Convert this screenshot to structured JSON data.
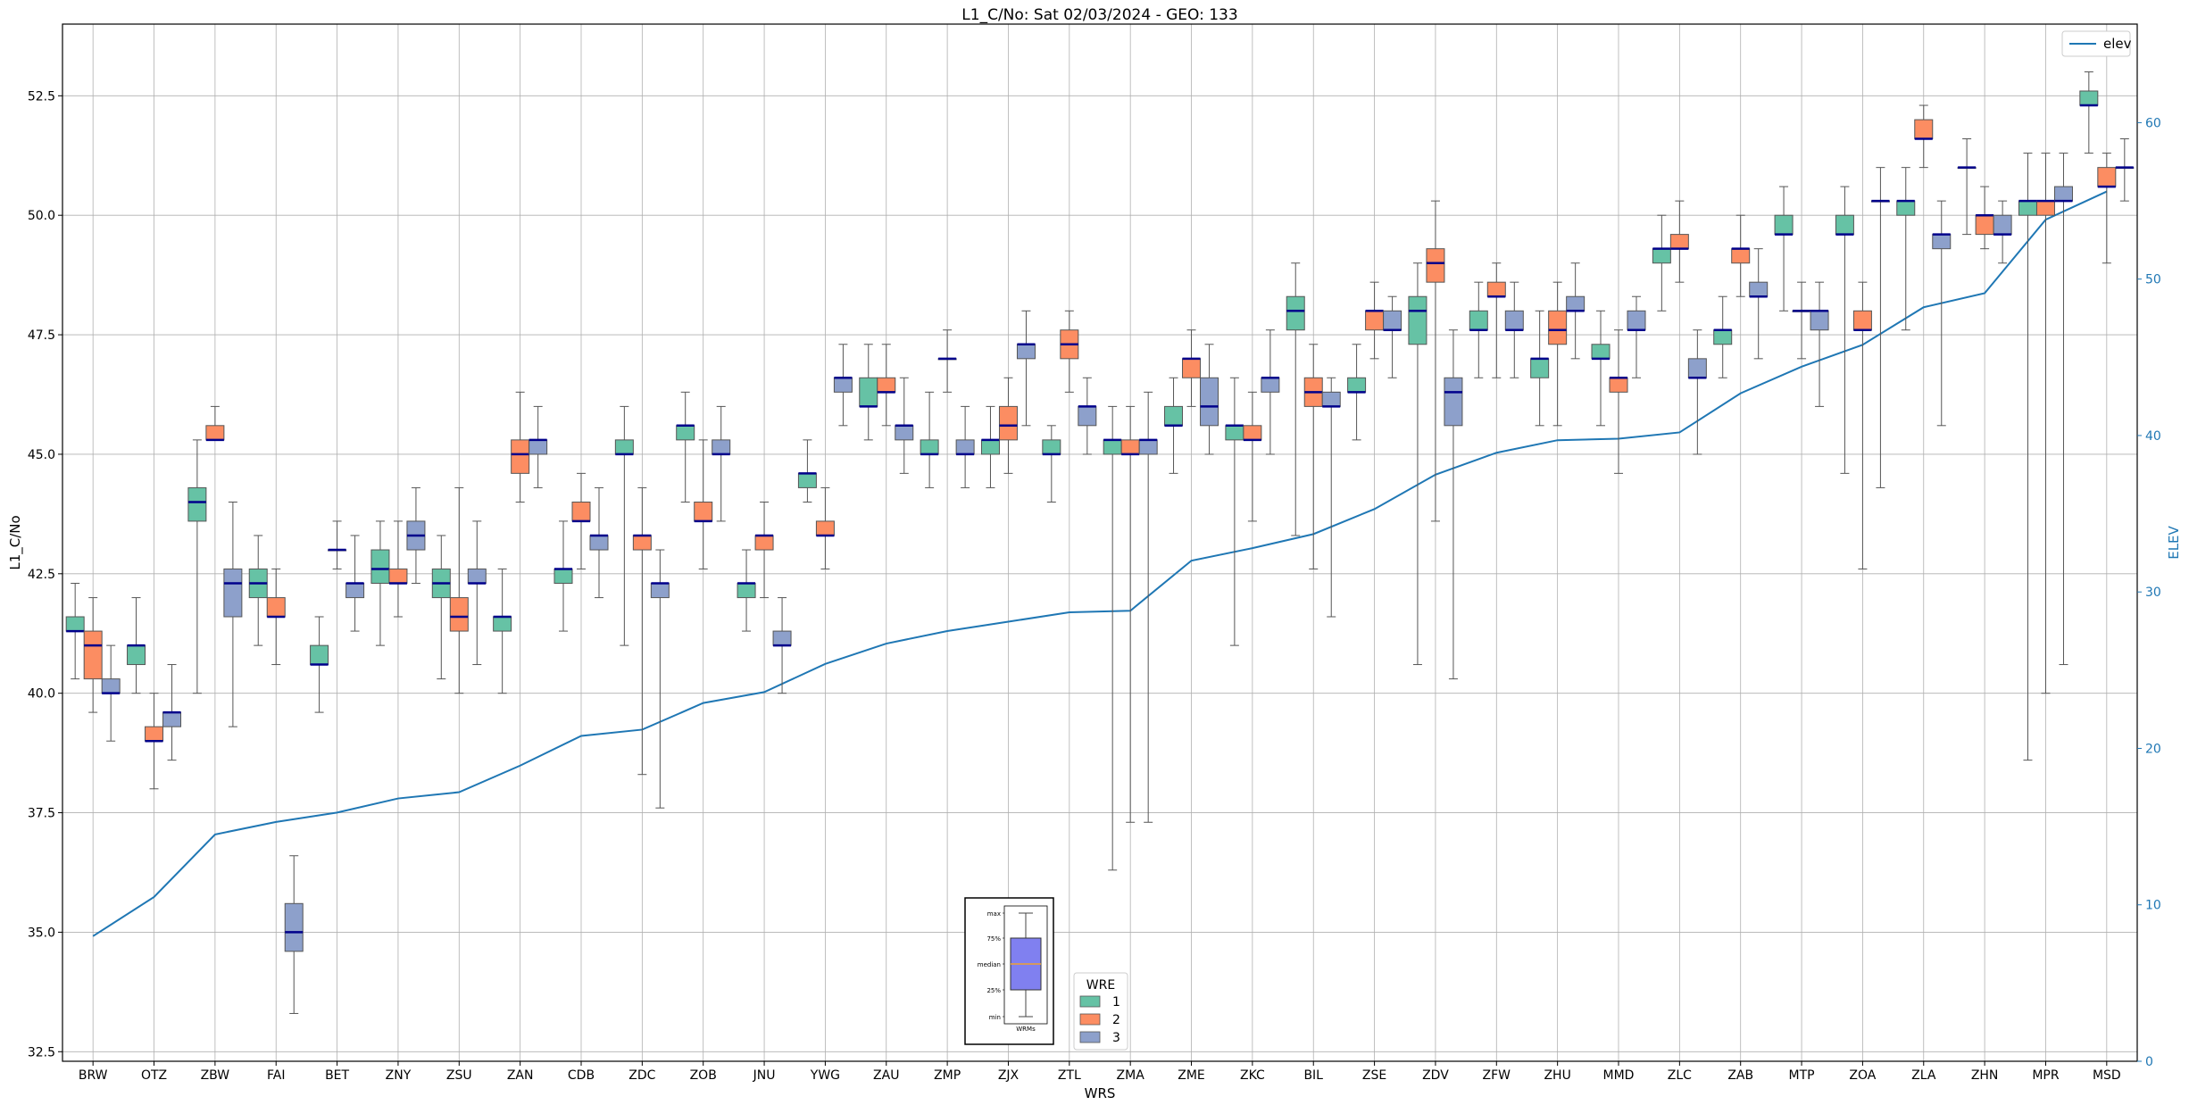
{
  "chart_data": {
    "type": "box",
    "title": "L1_C/No: Sat 02/03/2024 - GEO: 133",
    "xlabel": "WRS",
    "ylabel": "L1_C/No",
    "y2label": "ELEV",
    "ylim": [
      32.3,
      54.0
    ],
    "y2lim": [
      0,
      66.3
    ],
    "yticks": [
      "32.5",
      "35.0",
      "37.5",
      "40.0",
      "42.5",
      "45.0",
      "47.5",
      "50.0",
      "52.5"
    ],
    "y2ticks": [
      "0",
      "10",
      "20",
      "30",
      "40",
      "50",
      "60"
    ],
    "categories": [
      "BRW",
      "OTZ",
      "ZBW",
      "FAI",
      "BET",
      "ZNY",
      "ZSU",
      "ZAN",
      "CDB",
      "ZDC",
      "ZOB",
      "JNU",
      "YWG",
      "ZAU",
      "ZMP",
      "ZJX",
      "ZTL",
      "ZMA",
      "ZME",
      "ZKC",
      "BIL",
      "ZSE",
      "ZDV",
      "ZFW",
      "ZHU",
      "MMD",
      "ZLC",
      "ZAB",
      "MTP",
      "ZOA",
      "ZLA",
      "ZHN",
      "MPR",
      "MSD"
    ],
    "legend": {
      "title": "WRE",
      "position": "lower-center",
      "entries": [
        {
          "label": "1",
          "color": "#66c2a5"
        },
        {
          "label": "2",
          "color": "#fc8d62"
        },
        {
          "label": "3",
          "color": "#8da0cb"
        }
      ]
    },
    "elev_legend": {
      "label": "elev",
      "color": "#1f77b4",
      "position": "upper-right"
    },
    "inset": {
      "labels": [
        "max",
        "75%",
        "median",
        "25%",
        "min"
      ],
      "xlabel": "WRMs"
    },
    "elev": [
      8,
      10.5,
      14.5,
      15.3,
      15.9,
      16.8,
      17.2,
      18.9,
      20.8,
      21.2,
      22.9,
      23.6,
      25.4,
      26.7,
      27.5,
      28.1,
      28.7,
      28.8,
      32.0,
      32.8,
      33.7,
      35.3,
      37.5,
      38.9,
      39.7,
      39.8,
      40.2,
      42.7,
      44.4,
      45.8,
      48.2,
      49.1,
      53.8,
      55.6
    ],
    "series": [
      {
        "name": "1",
        "boxes": [
          {
            "cat": "BRW",
            "min": 40.3,
            "q1": 41.3,
            "med": 41.3,
            "q3": 41.6,
            "max": 42.3
          },
          {
            "cat": "OTZ",
            "min": 40.0,
            "q1": 40.6,
            "med": 41.0,
            "q3": 41.0,
            "max": 42.0
          },
          {
            "cat": "ZBW",
            "min": 40.0,
            "q1": 43.6,
            "med": 44.0,
            "q3": 44.3,
            "max": 45.3
          },
          {
            "cat": "FAI",
            "min": 41.0,
            "q1": 42.0,
            "med": 42.3,
            "q3": 42.6,
            "max": 43.3
          },
          {
            "cat": "BET",
            "min": 39.6,
            "q1": 40.6,
            "med": 40.6,
            "q3": 41.0,
            "max": 41.6
          },
          {
            "cat": "ZNY",
            "min": 41.0,
            "q1": 42.3,
            "med": 42.6,
            "q3": 43.0,
            "max": 43.6
          },
          {
            "cat": "ZSU",
            "min": 40.3,
            "q1": 42.0,
            "med": 42.3,
            "q3": 42.6,
            "max": 43.3
          },
          {
            "cat": "ZAN",
            "min": 40.0,
            "q1": 41.3,
            "med": 41.6,
            "q3": 41.6,
            "max": 42.6
          },
          {
            "cat": "CDB",
            "min": 41.3,
            "q1": 42.3,
            "med": 42.6,
            "q3": 42.6,
            "max": 43.6
          },
          {
            "cat": "ZDC",
            "min": 41.0,
            "q1": 45.0,
            "med": 45.0,
            "q3": 45.3,
            "max": 46.0
          },
          {
            "cat": "ZOB",
            "min": 44.0,
            "q1": 45.3,
            "med": 45.6,
            "q3": 45.6,
            "max": 46.3
          },
          {
            "cat": "JNU",
            "min": 41.3,
            "q1": 42.0,
            "med": 42.3,
            "q3": 42.3,
            "max": 43.0
          },
          {
            "cat": "YWG",
            "min": 44.0,
            "q1": 44.3,
            "med": 44.6,
            "q3": 44.6,
            "max": 45.3
          },
          {
            "cat": "ZAU",
            "min": 45.3,
            "q1": 46.0,
            "med": 46.0,
            "q3": 46.6,
            "max": 47.3
          },
          {
            "cat": "ZMP",
            "min": 44.3,
            "q1": 45.0,
            "med": 45.0,
            "q3": 45.3,
            "max": 46.3
          },
          {
            "cat": "ZJX",
            "min": 44.3,
            "q1": 45.0,
            "med": 45.3,
            "q3": 45.3,
            "max": 46.0
          },
          {
            "cat": "ZTL",
            "min": 44.0,
            "q1": 45.0,
            "med": 45.0,
            "q3": 45.3,
            "max": 45.6
          },
          {
            "cat": "ZMA",
            "min": 36.3,
            "q1": 45.0,
            "med": 45.3,
            "q3": 45.3,
            "max": 46.0
          },
          {
            "cat": "ZME",
            "min": 44.6,
            "q1": 45.6,
            "med": 45.6,
            "q3": 46.0,
            "max": 46.6
          },
          {
            "cat": "ZKC",
            "min": 41.0,
            "q1": 45.3,
            "med": 45.6,
            "q3": 45.6,
            "max": 46.6
          },
          {
            "cat": "BIL",
            "min": 43.3,
            "q1": 47.6,
            "med": 48.0,
            "q3": 48.3,
            "max": 49.0
          },
          {
            "cat": "ZSE",
            "min": 45.3,
            "q1": 46.3,
            "med": 46.3,
            "q3": 46.6,
            "max": 47.3
          },
          {
            "cat": "ZDV",
            "min": 40.6,
            "q1": 47.3,
            "med": 48.0,
            "q3": 48.3,
            "max": 49.0
          },
          {
            "cat": "ZFW",
            "min": 46.6,
            "q1": 47.6,
            "med": 47.6,
            "q3": 48.0,
            "max": 48.6
          },
          {
            "cat": "ZHU",
            "min": 45.6,
            "q1": 46.6,
            "med": 47.0,
            "q3": 47.0,
            "max": 48.0
          },
          {
            "cat": "MMD",
            "min": 45.6,
            "q1": 47.0,
            "med": 47.0,
            "q3": 47.3,
            "max": 48.0
          },
          {
            "cat": "ZLC",
            "min": 48.0,
            "q1": 49.0,
            "med": 49.3,
            "q3": 49.3,
            "max": 50.0
          },
          {
            "cat": "ZAB",
            "min": 46.6,
            "q1": 47.3,
            "med": 47.6,
            "q3": 47.6,
            "max": 48.3
          },
          {
            "cat": "MTP",
            "min": 48.0,
            "q1": 49.6,
            "med": 49.6,
            "q3": 50.0,
            "max": 50.6
          },
          {
            "cat": "ZOA",
            "min": 44.6,
            "q1": 49.6,
            "med": 49.6,
            "q3": 50.0,
            "max": 50.6
          },
          {
            "cat": "ZLA",
            "min": 47.6,
            "q1": 50.0,
            "med": 50.3,
            "q3": 50.3,
            "max": 51.0
          },
          {
            "cat": "ZHN",
            "min": 49.6,
            "q1": 51.0,
            "med": 51.0,
            "q3": 51.0,
            "max": 51.6
          },
          {
            "cat": "MPR",
            "min": 38.6,
            "q1": 50.0,
            "med": 50.3,
            "q3": 50.3,
            "max": 51.3
          },
          {
            "cat": "MSD",
            "min": 51.3,
            "q1": 52.3,
            "med": 52.3,
            "q3": 52.6,
            "max": 53.0
          }
        ]
      },
      {
        "name": "2",
        "boxes": [
          {
            "cat": "BRW",
            "min": 39.6,
            "q1": 40.3,
            "med": 41.0,
            "q3": 41.3,
            "max": 42.0
          },
          {
            "cat": "OTZ",
            "min": 38.0,
            "q1": 39.0,
            "med": 39.0,
            "q3": 39.3,
            "max": 40.0
          },
          {
            "cat": "ZBW",
            "min": 45.3,
            "q1": 45.3,
            "med": 45.3,
            "q3": 45.6,
            "max": 46.0
          },
          {
            "cat": "FAI",
            "min": 40.6,
            "q1": 41.6,
            "med": 41.6,
            "q3": 42.0,
            "max": 42.6
          },
          {
            "cat": "BET",
            "min": 42.6,
            "q1": 43.0,
            "med": 43.0,
            "q3": 43.0,
            "max": 43.6
          },
          {
            "cat": "ZNY",
            "min": 41.6,
            "q1": 42.3,
            "med": 42.3,
            "q3": 42.6,
            "max": 43.6
          },
          {
            "cat": "ZSU",
            "min": 40.0,
            "q1": 41.3,
            "med": 41.6,
            "q3": 42.0,
            "max": 44.3
          },
          {
            "cat": "ZAN",
            "min": 44.0,
            "q1": 44.6,
            "med": 45.0,
            "q3": 45.3,
            "max": 46.3
          },
          {
            "cat": "CDB",
            "min": 42.6,
            "q1": 43.6,
            "med": 43.6,
            "q3": 44.0,
            "max": 44.6
          },
          {
            "cat": "ZDC",
            "min": 38.3,
            "q1": 43.0,
            "med": 43.3,
            "q3": 43.3,
            "max": 44.3
          },
          {
            "cat": "ZOB",
            "min": 42.6,
            "q1": 43.6,
            "med": 43.6,
            "q3": 44.0,
            "max": 45.3
          },
          {
            "cat": "JNU",
            "min": 42.0,
            "q1": 43.0,
            "med": 43.3,
            "q3": 43.3,
            "max": 44.0
          },
          {
            "cat": "YWG",
            "min": 42.6,
            "q1": 43.3,
            "med": 43.3,
            "q3": 43.6,
            "max": 44.3
          },
          {
            "cat": "ZAU",
            "min": 45.6,
            "q1": 46.3,
            "med": 46.3,
            "q3": 46.6,
            "max": 47.3
          },
          {
            "cat": "ZMP",
            "min": 46.3,
            "q1": 47.0,
            "med": 47.0,
            "q3": 47.0,
            "max": 47.6
          },
          {
            "cat": "ZJX",
            "min": 44.6,
            "q1": 45.3,
            "med": 45.6,
            "q3": 46.0,
            "max": 46.6
          },
          {
            "cat": "ZTL",
            "min": 46.3,
            "q1": 47.0,
            "med": 47.3,
            "q3": 47.6,
            "max": 48.0
          },
          {
            "cat": "ZMA",
            "min": 37.3,
            "q1": 45.0,
            "med": 45.0,
            "q3": 45.3,
            "max": 46.0
          },
          {
            "cat": "ZME",
            "min": 46.0,
            "q1": 46.6,
            "med": 47.0,
            "q3": 47.0,
            "max": 47.6
          },
          {
            "cat": "ZKC",
            "min": 43.6,
            "q1": 45.3,
            "med": 45.3,
            "q3": 45.6,
            "max": 46.3
          },
          {
            "cat": "BIL",
            "min": 42.6,
            "q1": 46.0,
            "med": 46.3,
            "q3": 46.6,
            "max": 47.3
          },
          {
            "cat": "ZSE",
            "min": 47.0,
            "q1": 47.6,
            "med": 48.0,
            "q3": 48.0,
            "max": 48.6
          },
          {
            "cat": "ZDV",
            "min": 43.6,
            "q1": 48.6,
            "med": 49.0,
            "q3": 49.3,
            "max": 50.3
          },
          {
            "cat": "ZFW",
            "min": 46.6,
            "q1": 48.3,
            "med": 48.3,
            "q3": 48.6,
            "max": 49.0
          },
          {
            "cat": "ZHU",
            "min": 45.6,
            "q1": 47.3,
            "med": 47.6,
            "q3": 48.0,
            "max": 48.6
          },
          {
            "cat": "MMD",
            "min": 44.6,
            "q1": 46.3,
            "med": 46.6,
            "q3": 46.6,
            "max": 47.6
          },
          {
            "cat": "ZLC",
            "min": 48.6,
            "q1": 49.3,
            "med": 49.3,
            "q3": 49.6,
            "max": 50.3
          },
          {
            "cat": "ZAB",
            "min": 48.3,
            "q1": 49.0,
            "med": 49.3,
            "q3": 49.3,
            "max": 50.0
          },
          {
            "cat": "MTP",
            "min": 47.0,
            "q1": 48.0,
            "med": 48.0,
            "q3": 48.0,
            "max": 48.6
          },
          {
            "cat": "ZOA",
            "min": 42.6,
            "q1": 47.6,
            "med": 47.6,
            "q3": 48.0,
            "max": 48.6
          },
          {
            "cat": "ZLA",
            "min": 51.0,
            "q1": 51.6,
            "med": 51.6,
            "q3": 52.0,
            "max": 52.3
          },
          {
            "cat": "ZHN",
            "min": 49.3,
            "q1": 49.6,
            "med": 50.0,
            "q3": 50.0,
            "max": 50.6
          },
          {
            "cat": "MPR",
            "min": 40.0,
            "q1": 50.0,
            "med": 50.3,
            "q3": 50.3,
            "max": 51.3
          },
          {
            "cat": "MSD",
            "min": 49.0,
            "q1": 50.6,
            "med": 50.6,
            "q3": 51.0,
            "max": 51.3
          }
        ]
      },
      {
        "name": "3",
        "boxes": [
          {
            "cat": "BRW",
            "min": 39.0,
            "q1": 40.0,
            "med": 40.0,
            "q3": 40.3,
            "max": 41.0
          },
          {
            "cat": "OTZ",
            "min": 38.6,
            "q1": 39.3,
            "med": 39.6,
            "q3": 39.6,
            "max": 40.6
          },
          {
            "cat": "ZBW",
            "min": 39.3,
            "q1": 41.6,
            "med": 42.3,
            "q3": 42.6,
            "max": 44.0
          },
          {
            "cat": "FAI",
            "min": 33.3,
            "q1": 34.6,
            "med": 35.0,
            "q3": 35.6,
            "max": 36.6
          },
          {
            "cat": "BET",
            "min": 41.3,
            "q1": 42.0,
            "med": 42.3,
            "q3": 42.3,
            "max": 43.3
          },
          {
            "cat": "ZNY",
            "min": 42.3,
            "q1": 43.0,
            "med": 43.3,
            "q3": 43.6,
            "max": 44.3
          },
          {
            "cat": "ZSU",
            "min": 40.6,
            "q1": 42.3,
            "med": 42.3,
            "q3": 42.6,
            "max": 43.6
          },
          {
            "cat": "ZAN",
            "min": 44.3,
            "q1": 45.0,
            "med": 45.3,
            "q3": 45.3,
            "max": 46.0
          },
          {
            "cat": "CDB",
            "min": 42.0,
            "q1": 43.0,
            "med": 43.3,
            "q3": 43.3,
            "max": 44.3
          },
          {
            "cat": "ZDC",
            "min": 37.6,
            "q1": 42.0,
            "med": 42.3,
            "q3": 42.3,
            "max": 43.0
          },
          {
            "cat": "ZOB",
            "min": 43.6,
            "q1": 45.0,
            "med": 45.0,
            "q3": 45.3,
            "max": 46.0
          },
          {
            "cat": "JNU",
            "min": 40.0,
            "q1": 41.0,
            "med": 41.0,
            "q3": 41.3,
            "max": 42.0
          },
          {
            "cat": "YWG",
            "min": 45.6,
            "q1": 46.3,
            "med": 46.6,
            "q3": 46.6,
            "max": 47.3
          },
          {
            "cat": "ZAU",
            "min": 44.6,
            "q1": 45.3,
            "med": 45.6,
            "q3": 45.6,
            "max": 46.6
          },
          {
            "cat": "ZMP",
            "min": 44.3,
            "q1": 45.0,
            "med": 45.0,
            "q3": 45.3,
            "max": 46.0
          },
          {
            "cat": "ZJX",
            "min": 45.6,
            "q1": 47.0,
            "med": 47.3,
            "q3": 47.3,
            "max": 48.0
          },
          {
            "cat": "ZTL",
            "min": 45.0,
            "q1": 45.6,
            "med": 46.0,
            "q3": 46.0,
            "max": 46.6
          },
          {
            "cat": "ZMA",
            "min": 37.3,
            "q1": 45.0,
            "med": 45.3,
            "q3": 45.3,
            "max": 46.3
          },
          {
            "cat": "ZME",
            "min": 45.0,
            "q1": 45.6,
            "med": 46.0,
            "q3": 46.6,
            "max": 47.3
          },
          {
            "cat": "ZKC",
            "min": 45.0,
            "q1": 46.3,
            "med": 46.6,
            "q3": 46.6,
            "max": 47.6
          },
          {
            "cat": "BIL",
            "min": 41.6,
            "q1": 46.0,
            "med": 46.0,
            "q3": 46.3,
            "max": 46.6
          },
          {
            "cat": "ZSE",
            "min": 46.6,
            "q1": 47.6,
            "med": 47.6,
            "q3": 48.0,
            "max": 48.3
          },
          {
            "cat": "ZDV",
            "min": 40.3,
            "q1": 45.6,
            "med": 46.3,
            "q3": 46.6,
            "max": 47.6
          },
          {
            "cat": "ZFW",
            "min": 46.6,
            "q1": 47.6,
            "med": 47.6,
            "q3": 48.0,
            "max": 48.6
          },
          {
            "cat": "ZHU",
            "min": 47.0,
            "q1": 48.0,
            "med": 48.0,
            "q3": 48.3,
            "max": 49.0
          },
          {
            "cat": "MMD",
            "min": 46.6,
            "q1": 47.6,
            "med": 47.6,
            "q3": 48.0,
            "max": 48.3
          },
          {
            "cat": "ZLC",
            "min": 45.0,
            "q1": 46.6,
            "med": 46.6,
            "q3": 47.0,
            "max": 47.6
          },
          {
            "cat": "ZAB",
            "min": 47.0,
            "q1": 48.3,
            "med": 48.3,
            "q3": 48.6,
            "max": 49.3
          },
          {
            "cat": "MTP",
            "min": 46.0,
            "q1": 47.6,
            "med": 48.0,
            "q3": 48.0,
            "max": 48.6
          },
          {
            "cat": "ZOA",
            "min": 44.3,
            "q1": 50.3,
            "med": 50.3,
            "q3": 50.3,
            "max": 51.0
          },
          {
            "cat": "ZLA",
            "min": 45.6,
            "q1": 49.3,
            "med": 49.6,
            "q3": 49.6,
            "max": 50.3
          },
          {
            "cat": "ZHN",
            "min": 49.0,
            "q1": 49.6,
            "med": 49.6,
            "q3": 50.0,
            "max": 50.3
          },
          {
            "cat": "MPR",
            "min": 40.6,
            "q1": 50.3,
            "med": 50.3,
            "q3": 50.6,
            "max": 51.3
          },
          {
            "cat": "MSD",
            "min": 50.3,
            "q1": 51.0,
            "med": 51.0,
            "q3": 51.0,
            "max": 51.6
          }
        ]
      }
    ]
  }
}
